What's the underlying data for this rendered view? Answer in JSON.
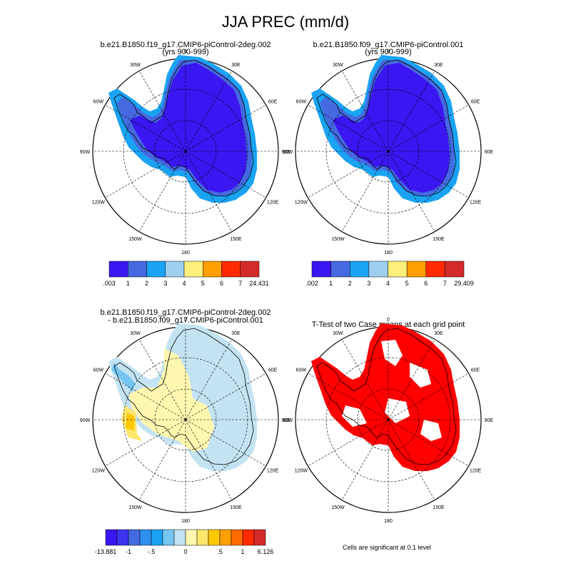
{
  "title": "JJA PREC (mm/d)",
  "panels": [
    {
      "id": "a",
      "title_line1": "b.e21.B1850.f19_g17.CMIP6-piControl-2deg.002",
      "title_line2": "(yrs 900-999)"
    },
    {
      "id": "b",
      "title_line1": "b.e21.B1850.f09_g17.CMIP6-piControl.001",
      "title_line2": "(yrs 900-999)"
    },
    {
      "id": "c",
      "title_line1": "b.e21.B1850.f19_g17.CMIP6-piControl-2deg.002",
      "title_line2": "- b.e21.B1850.f09_g17.CMIP6-piControl.001"
    },
    {
      "id": "d",
      "title_line1": "T-Test of two Case means at each grid point",
      "title_line2": ""
    }
  ],
  "lon_labels": [
    "0",
    "30E",
    "60E",
    "90E",
    "120E",
    "150E",
    "180",
    "150W",
    "120W",
    "90W",
    "60W",
    "30W"
  ],
  "colorbars": [
    {
      "id": "a",
      "colors": [
        "#3a16f0",
        "#4569e0",
        "#1aa3f2",
        "#9dd0ef",
        "#fdf07c",
        "#ff9f00",
        "#ff2a00",
        "#d42a2a"
      ],
      "labels": [
        ".003",
        "1",
        "2",
        "3",
        "4",
        "5",
        "6",
        "7",
        "24.431"
      ]
    },
    {
      "id": "b",
      "colors": [
        "#3a16f0",
        "#4569e0",
        "#1aa3f2",
        "#9dd0ef",
        "#fdf07c",
        "#ff9f00",
        "#ff2a00",
        "#d42a2a"
      ],
      "labels": [
        ".002",
        "1",
        "2",
        "3",
        "4",
        "5",
        "6",
        "7",
        "29.409"
      ]
    },
    {
      "id": "c",
      "colors": [
        "#3a16f0",
        "#3b35f0",
        "#4569e0",
        "#2e8ff0",
        "#1aa3f2",
        "#75c6f2",
        "#c3e3f2",
        "#fff7b0",
        "#fde66a",
        "#ffc700",
        "#ff9f00",
        "#ff6a00",
        "#ff2a00",
        "#d42a2a"
      ],
      "labels": [
        "-13.881",
        "-1",
        "-.5",
        "0",
        ".5",
        "1",
        "6.126"
      ]
    }
  ],
  "significance_note": "Cells are significant at 0.1 level",
  "chart_data": [
    {
      "type": "heatmap",
      "projection": "south-polar-stereographic",
      "title": "b.e21.B1850.f19_g17.CMIP6-piControl-2deg.002 (yrs 900-999)",
      "colorbar_levels": [
        ".003",
        "1",
        "2",
        "3",
        "4",
        "5",
        "6",
        "7",
        "24.431"
      ],
      "dominant_range": "<1 mm/d over interior, 2-3 mm/d along coast"
    },
    {
      "type": "heatmap",
      "projection": "south-polar-stereographic",
      "title": "b.e21.B1850.f09_g17.CMIP6-piControl.001 (yrs 900-999)",
      "colorbar_levels": [
        ".002",
        "1",
        "2",
        "3",
        "4",
        "5",
        "6",
        "7",
        "29.409"
      ],
      "dominant_range": "<1 mm/d over interior, 1-3 mm/d along coast"
    },
    {
      "type": "heatmap",
      "projection": "south-polar-stereographic",
      "title": "difference",
      "colorbar_levels": [
        "-13.881",
        "-1",
        "-.5",
        "0",
        ".5",
        "1",
        "6.126"
      ],
      "dominant_range": "-0.5 to 0.5 mm/d, positive over West Antarctica, negative along East coast"
    },
    {
      "type": "heatmap",
      "projection": "south-polar-stereographic",
      "title": "T-Test of two Case means at each grid point",
      "note": "Cells are significant at 0.1 level"
    }
  ]
}
